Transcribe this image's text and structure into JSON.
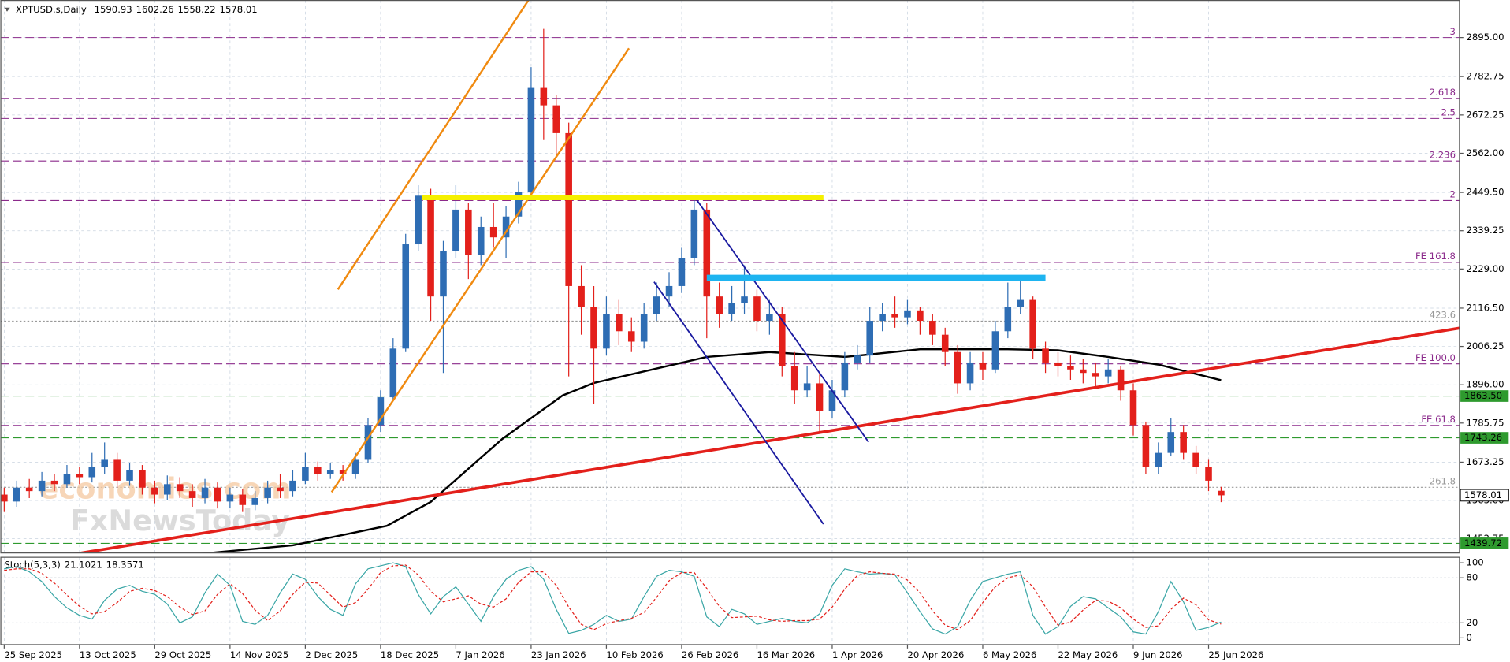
{
  "chart_data": [
    {
      "type": "candlestick",
      "title": "XPTUSD.s,Daily",
      "categories": [
        "25 Sep 2025",
        null,
        null,
        null,
        null,
        null,
        "13 Oct 2025",
        null,
        null,
        null,
        null,
        null,
        "29 Oct 2025",
        null,
        null,
        null,
        null,
        null,
        "14 Nov 2025",
        null,
        null,
        null,
        null,
        null,
        "2 Dec 2025",
        null,
        null,
        null,
        null,
        null,
        "18 Dec 2025",
        null,
        null,
        null,
        null,
        null,
        "7 Jan 2026",
        null,
        null,
        null,
        null,
        null,
        "23 Jan 2026",
        null,
        null,
        null,
        null,
        null,
        "10 Feb 2026",
        null,
        null,
        null,
        null,
        null,
        "26 Feb 2026",
        null,
        null,
        null,
        null,
        null,
        "16 Mar 2026",
        null,
        null,
        null,
        null,
        null,
        "1 Apr 2026",
        null,
        null,
        null,
        null,
        null,
        "20 Apr 2026",
        null,
        null,
        null,
        null,
        null,
        "6 May 2026",
        null,
        null,
        null,
        null,
        null,
        "22 May 2026",
        null,
        null,
        null,
        null,
        null,
        "9 Jun 2026",
        null,
        null,
        null,
        null,
        null,
        "25 Jun 2026",
        null
      ],
      "open": [
        1580,
        1560,
        1600,
        1590,
        1620,
        1610,
        1640,
        1630,
        1660,
        1680,
        1620,
        1650,
        1600,
        1580,
        1610,
        1590,
        1570,
        1600,
        1560,
        1580,
        1550,
        1570,
        1600,
        1590,
        1620,
        1660,
        1640,
        1650,
        1640,
        1680,
        1780,
        1860,
        2000,
        2300,
        2440,
        2150,
        2280,
        2400,
        2270,
        2350,
        2320,
        2380,
        2450,
        2750,
        2700,
        2620,
        2180,
        2120,
        2000,
        2100,
        2050,
        2020,
        2100,
        2150,
        2180,
        2260,
        2400,
        2150,
        2100,
        2130,
        2150,
        2080,
        2100,
        1950,
        1880,
        1900,
        1820,
        1880,
        1960,
        1980,
        2080,
        2100,
        2090,
        2110,
        2080,
        2040,
        1990,
        1900,
        1960,
        1940,
        2050,
        2120,
        2140,
        2000,
        1960,
        1950,
        1940,
        1930,
        1920,
        1940,
        1880,
        1780,
        1660,
        1700,
        1760,
        1700,
        1660,
        1590.93
      ],
      "high": [
        1600,
        1620,
        1625,
        1645,
        1640,
        1665,
        1660,
        1700,
        1730,
        1700,
        1670,
        1665,
        1620,
        1635,
        1630,
        1610,
        1625,
        1615,
        1600,
        1595,
        1590,
        1620,
        1640,
        1650,
        1700,
        1675,
        1670,
        1665,
        1700,
        1800,
        1880,
        2030,
        2330,
        2470,
        2460,
        2310,
        2470,
        2420,
        2380,
        2420,
        2410,
        2480,
        2810,
        2920,
        2730,
        2650,
        2240,
        2180,
        2150,
        2140,
        2090,
        2130,
        2190,
        2220,
        2290,
        2440,
        2420,
        2190,
        2180,
        2240,
        2170,
        2140,
        2120,
        1990,
        1950,
        1930,
        1910,
        1990,
        2010,
        2120,
        2130,
        2150,
        2140,
        2120,
        2100,
        2060,
        2010,
        1990,
        1990,
        2080,
        2190,
        2200,
        2150,
        2020,
        1990,
        1980,
        1970,
        1960,
        1970,
        1950,
        1900,
        1790,
        1730,
        1800,
        1780,
        1720,
        1680,
        1602.26
      ],
      "low": [
        1530,
        1545,
        1570,
        1575,
        1590,
        1600,
        1610,
        1615,
        1640,
        1600,
        1605,
        1580,
        1555,
        1565,
        1570,
        1545,
        1555,
        1540,
        1540,
        1530,
        1535,
        1555,
        1570,
        1575,
        1610,
        1620,
        1625,
        1620,
        1625,
        1670,
        1760,
        1850,
        1990,
        2280,
        2080,
        1930,
        2260,
        2200,
        2240,
        2290,
        2260,
        2360,
        2430,
        2600,
        2550,
        1920,
        2040,
        1840,
        1980,
        2010,
        1990,
        2000,
        2080,
        2120,
        2160,
        2240,
        2030,
        2060,
        2080,
        2100,
        2050,
        2040,
        1920,
        1840,
        1860,
        1760,
        1800,
        1860,
        1940,
        1960,
        2050,
        2060,
        2070,
        2040,
        2010,
        1950,
        1870,
        1880,
        1910,
        1930,
        2030,
        2100,
        1970,
        1930,
        1920,
        1910,
        1900,
        1890,
        1900,
        1850,
        1750,
        1640,
        1640,
        1690,
        1680,
        1640,
        1590,
        1558.22
      ],
      "close": [
        1560,
        1600,
        1590,
        1620,
        1610,
        1640,
        1630,
        1660,
        1680,
        1620,
        1650,
        1600,
        1580,
        1610,
        1590,
        1570,
        1600,
        1560,
        1580,
        1550,
        1570,
        1600,
        1590,
        1620,
        1660,
        1640,
        1650,
        1640,
        1680,
        1780,
        1860,
        2000,
        2300,
        2440,
        2150,
        2280,
        2400,
        2270,
        2350,
        2320,
        2380,
        2450,
        2750,
        2700,
        2620,
        2180,
        2120,
        2000,
        2100,
        2050,
        2020,
        2100,
        2150,
        2180,
        2260,
        2400,
        2150,
        2100,
        2130,
        2150,
        2080,
        2100,
        1950,
        1880,
        1900,
        1820,
        1880,
        1960,
        1980,
        2080,
        2100,
        2090,
        2110,
        2080,
        2040,
        1990,
        1900,
        1960,
        1940,
        2050,
        2120,
        2140,
        2000,
        1960,
        1950,
        1940,
        1930,
        1920,
        1940,
        1880,
        1780,
        1660,
        1700,
        1760,
        1700,
        1660,
        1620,
        1578.01
      ],
      "up_color": "#2e6db4",
      "down_color": "#e3201b",
      "ylim": [
        1412,
        3003
      ],
      "yticks": [
        {
          "value": 2895,
          "label": "2895.00"
        },
        {
          "value": 2782.75,
          "label": "2782.75"
        },
        {
          "value": 2672.25,
          "label": "2672.25"
        },
        {
          "value": 2562,
          "label": "2562.00"
        },
        {
          "value": 2449.5,
          "label": "2449.50"
        },
        {
          "value": 2339.25,
          "label": "2339.25"
        },
        {
          "value": 2229,
          "label": "2229.00"
        },
        {
          "value": 2116.5,
          "label": "2116.50"
        },
        {
          "value": 2006.25,
          "label": "2006.25"
        },
        {
          "value": 1896,
          "label": "1896.00"
        },
        {
          "value": 1785.75,
          "label": "1785.75"
        },
        {
          "value": 1673.25,
          "label": "1673.25"
        },
        {
          "value": 1563,
          "label": "1563.00"
        },
        {
          "value": 1452.75,
          "label": "1452.75"
        }
      ],
      "grid": true,
      "moving_average": {
        "color": "#000000",
        "x": [
          13,
          23,
          30.5,
          34,
          39.7,
          44.5,
          47,
          56,
          61,
          67,
          73,
          80,
          84,
          88,
          92,
          97
        ],
        "values": [
          1401,
          1434,
          1490,
          1559,
          1740,
          1865,
          1901,
          1976,
          1990,
          1976,
          1998,
          1998,
          1995,
          1976,
          1954,
          1909
        ]
      },
      "trend_lines": [
        {
          "color": "#e3201b",
          "width": 3,
          "x": [
            4.3,
            116
          ],
          "values": [
            1401,
            2059
          ]
        },
        {
          "color": "#f08a10",
          "width": 2,
          "x": [
            26.6,
            41.8
          ],
          "values": [
            2170,
            3003
          ]
        },
        {
          "color": "#f08a10",
          "width": 2,
          "x": [
            26.1,
            49.8
          ],
          "values": [
            1587,
            2864
          ]
        },
        {
          "color": "#1a1aa0",
          "width": 1.5,
          "x": [
            55.2,
            68.9
          ],
          "values": [
            2428,
            1731
          ]
        },
        {
          "color": "#1a1aa0",
          "width": 1.5,
          "x": [
            51.8,
            65.3
          ],
          "values": [
            2192,
            1495
          ]
        },
        {
          "color": "#f5f000",
          "width": 5,
          "x": [
            33.3,
            65.3
          ],
          "values": [
            2434,
            2434
          ]
        },
        {
          "color": "#1eb4f0",
          "width": 6,
          "x": [
            56,
            83
          ],
          "values": [
            2204,
            2204
          ]
        }
      ],
      "levels": [
        {
          "value": 2895,
          "label": "3",
          "color": "#8b2a8b"
        },
        {
          "value": 2720,
          "label": "2.618",
          "color": "#8b2a8b"
        },
        {
          "value": 2662,
          "label": "2.5",
          "color": "#8b2a8b"
        },
        {
          "value": 2540,
          "label": "2.236",
          "color": "#8b2a8b"
        },
        {
          "value": 2426,
          "label": "2",
          "color": "#8b2a8b"
        },
        {
          "value": 2248,
          "label": "FE 161.8",
          "color": "#8b2a8b"
        },
        {
          "value": 2079,
          "label": "423.6",
          "color": "#999999"
        },
        {
          "value": 1956,
          "label": "FE 100.0",
          "color": "#8b2a8b"
        },
        {
          "value": 1779,
          "label": "FE 61.8",
          "color": "#8b2a8b"
        },
        {
          "value": 1601,
          "label": "261.8",
          "color": "#999999"
        }
      ],
      "price_labels": [
        {
          "value": 1863.5,
          "label": "1863.50",
          "color": "#2e9a2e"
        },
        {
          "value": 1743.26,
          "label": "1743.26",
          "color": "#2e9a2e"
        },
        {
          "value": 1439.72,
          "label": "1439.72",
          "color": "#2e9a2e"
        }
      ],
      "watermark": [
        "economies.com",
        "FxNewsToday"
      ]
    },
    {
      "type": "line",
      "title": "Stoch(5,3,3)",
      "ylim": [
        -9,
        108
      ],
      "yticks": [
        100,
        80,
        20,
        0
      ],
      "levels": [
        80,
        20
      ],
      "series": [
        {
          "color": "#3aa6a6",
          "dashed": false,
          "values": [
            92,
            95,
            88,
            75,
            55,
            40,
            30,
            25,
            50,
            65,
            70,
            62,
            58,
            45,
            20,
            28,
            60,
            85,
            70,
            22,
            18,
            30,
            60,
            85,
            78,
            55,
            38,
            30,
            72,
            92,
            96,
            100,
            95,
            58,
            32,
            55,
            68,
            45,
            22,
            55,
            78,
            90,
            95,
            78,
            38,
            6,
            10,
            18,
            30,
            22,
            25,
            55,
            82,
            90,
            88,
            82,
            28,
            15,
            38,
            32,
            18,
            22,
            26,
            22,
            20,
            32,
            70,
            92,
            88,
            85,
            86,
            84,
            60,
            35,
            12,
            5,
            15,
            50,
            75,
            80,
            85,
            88,
            30,
            5,
            15,
            42,
            55,
            52,
            40,
            28,
            8,
            5,
            35,
            75,
            48,
            10,
            14,
            21.1021
          ]
        },
        {
          "color": "#e3201b",
          "dashed": true,
          "values": [
            90,
            92,
            92,
            86,
            73,
            57,
            42,
            32,
            35,
            47,
            62,
            66,
            63,
            55,
            41,
            31,
            36,
            58,
            72,
            59,
            37,
            23,
            36,
            58,
            74,
            73,
            57,
            41,
            47,
            65,
            87,
            96,
            97,
            84,
            62,
            48,
            52,
            56,
            45,
            41,
            52,
            74,
            88,
            88,
            70,
            41,
            18,
            11,
            19,
            23,
            26,
            34,
            54,
            76,
            87,
            87,
            66,
            42,
            27,
            28,
            29,
            24,
            22,
            23,
            23,
            25,
            41,
            65,
            83,
            88,
            86,
            85,
            77,
            60,
            36,
            17,
            11,
            23,
            47,
            68,
            80,
            84,
            68,
            41,
            17,
            21,
            37,
            50,
            49,
            40,
            25,
            14,
            16,
            38,
            53,
            44,
            24,
            18.3571
          ]
        }
      ]
    }
  ]
}
